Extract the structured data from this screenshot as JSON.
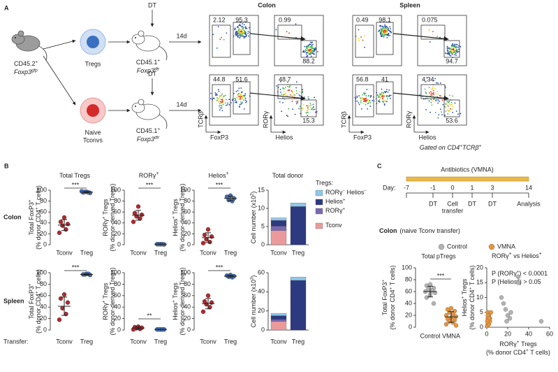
{
  "panel_a": {
    "label": "A",
    "donor_mouse": {
      "strain": [
        "CD45.2",
        "+"
      ],
      "genotype": [
        "Foxp3",
        "gfp"
      ]
    },
    "populations": [
      {
        "lines": [
          "Tregs"
        ]
      },
      {
        "lines": [
          "Naive",
          "Tconvs"
        ]
      }
    ],
    "treatment": "DT",
    "recipient": {
      "strain": [
        "CD45.1",
        "+"
      ],
      "genotype": [
        "Foxp3",
        "dtr"
      ]
    },
    "interval": "14d",
    "tissues": [
      {
        "name": "Colon",
        "rows": [
          {
            "foxp3_gates": [
              2.12,
              95.3
            ],
            "rorg_gates": [
              0.99,
              88.2
            ]
          },
          {
            "foxp3_gates": [
              44.8,
              51.6
            ],
            "rorg_gates": [
              48.7,
              15.3
            ]
          }
        ]
      },
      {
        "name": "Spleen",
        "rows": [
          {
            "foxp3_gates": [
              0.49,
              98.1
            ],
            "rorg_gates": [
              0.075,
              94.7
            ]
          },
          {
            "foxp3_gates": [
              56.8,
              41
            ],
            "rorg_gates": [
              4.34,
              53.6
            ]
          }
        ]
      }
    ],
    "axes": {
      "tcrb": "TCRβ",
      "foxp3": "FoxP3",
      "rorg": "RORγ",
      "helios": "Helios"
    },
    "gating_note": [
      "Gated on CD4",
      "+",
      "TCRβ",
      "+"
    ]
  },
  "panel_b": {
    "label": "B",
    "column_titles": [
      [
        "Total Tregs"
      ],
      [
        "RORγ",
        "+"
      ],
      [
        "Helios",
        "+"
      ],
      [
        "Total donor"
      ]
    ],
    "categories": [
      "Tconv",
      "Treg"
    ],
    "category_colors": [
      "#b3282d",
      "#3d6db5"
    ],
    "transfer_label": "Transfer:",
    "legend": {
      "title": "Tregs:",
      "series": [
        {
          "name": [
            "RORγ",
            "−",
            " Helios",
            "−"
          ],
          "color": "#8fc8ea"
        },
        {
          "name": [
            "Helios",
            "+"
          ],
          "color": "#2d3a80"
        },
        {
          "name": [
            "RORγ",
            "+"
          ],
          "color": "#7a68b3"
        },
        {
          "name": [
            "Tconv"
          ],
          "color": "#eb9a9b"
        }
      ]
    },
    "rows": [
      {
        "name": "Colon",
        "dot_plots": [
          {
            "ylabel": [
              [
                "Total FoxP3",
                "+"
              ],
              [
                "(% donor CD4",
                "+",
                " T cells)"
              ]
            ],
            "ylim": [
              0,
              100
            ],
            "yticks": [
              0,
              20,
              40,
              60,
              80,
              100
            ],
            "significance": "***",
            "groups": [
              {
                "values": [
                  50,
                  42,
                  38,
                  35,
                  28,
                  22
                ],
                "mean": 36,
                "sd": 10
              },
              {
                "values": [
                  97,
                  96,
                  95,
                  97,
                  96,
                  98
                ],
                "mean": 96.5,
                "sd": 1
              }
            ]
          },
          {
            "ylabel": [
              [
                "RORγ",
                "+",
                " Tregs"
              ],
              [
                "(% donor-derived Tregs)"
              ]
            ],
            "ylim": [
              0,
              100
            ],
            "yticks": [
              0,
              20,
              40,
              60,
              80,
              100
            ],
            "significance": "***",
            "groups": [
              {
                "values": [
                  70,
                  58,
                  55,
                  52,
                  48,
                  42
                ],
                "mean": 54,
                "sd": 9
              },
              {
                "values": [
                  1,
                  1,
                  0.5,
                  1,
                  1
                ],
                "mean": 1,
                "sd": 0.3
              }
            ]
          },
          {
            "ylabel": [
              [
                "Helios",
                "+",
                " Tregs"
              ],
              [
                "(% donor-derived Tregs)"
              ]
            ],
            "ylim": [
              0,
              100
            ],
            "yticks": [
              0,
              20,
              40,
              60,
              80,
              100
            ],
            "significance": "***",
            "groups": [
              {
                "values": [
                  28,
                  18,
                  15,
                  10,
                  5,
                  3
                ],
                "mean": 13,
                "sd": 9
              },
              {
                "values": [
                  90,
                  88,
                  85,
                  82,
                  80
                ],
                "mean": 85,
                "sd": 4
              }
            ]
          }
        ],
        "donor": {
          "ylabel": [
            "Cell number (x10",
            "2",
            ")"
          ],
          "ylim": [
            0,
            15
          ],
          "yticks": [
            0,
            5,
            10,
            15
          ],
          "values": [
            [
              0.7,
              1.0
            ],
            [
              1.6,
              10.5
            ],
            [
              1.2,
              0
            ],
            [
              3.9,
              0
            ]
          ]
        }
      },
      {
        "name": "Spleen",
        "dot_plots": [
          {
            "ylabel": [
              [
                "Total FoxP3",
                "+"
              ],
              [
                "(% donor CD4",
                "+",
                " T cells)"
              ]
            ],
            "ylim": [
              0,
              100
            ],
            "yticks": [
              0,
              20,
              40,
              60,
              80,
              100
            ],
            "significance": "***",
            "groups": [
              {
                "values": [
                  62,
                  55,
                  48,
                  38,
                  28,
                  18
                ],
                "mean": 41.5,
                "sd": 16
              },
              {
                "values": [
                  98,
                  97,
                  96,
                  97,
                  98
                ],
                "mean": 97,
                "sd": 1
              }
            ]
          },
          {
            "ylabel": [
              [
                "RORγ",
                "+",
                " Tregs"
              ],
              [
                "(% donor-derived Tregs)"
              ]
            ],
            "ylim": [
              0,
              100
            ],
            "yticks": [
              0,
              20,
              40,
              60,
              80,
              100
            ],
            "significance": "**",
            "groups": [
              {
                "values": [
                  6,
                  5,
                  4,
                  3,
                  2,
                  1
                ],
                "mean": 3.5,
                "sd": 1.9
              },
              {
                "values": [
                  1,
                  1,
                  1,
                  1,
                  1
                ],
                "mean": 1,
                "sd": 0.2
              }
            ]
          },
          {
            "ylabel": [
              [
                "Helios",
                "+",
                " Tregs"
              ],
              [
                "(% donor-derived Tregs)"
              ]
            ],
            "ylim": [
              0,
              100
            ],
            "yticks": [
              0,
              20,
              40,
              60,
              80,
              100
            ],
            "significance": "***",
            "groups": [
              {
                "values": [
                  60,
                  50,
                  48,
                  45,
                  40,
                  32
                ],
                "mean": 46,
                "sd": 9
              },
              {
                "values": [
                  96,
                  95,
                  94,
                  93,
                  92
                ],
                "mean": 94,
                "sd": 1.5
              }
            ]
          }
        ],
        "donor": {
          "ylabel": [
            "Cell number (x10",
            "3",
            ")"
          ],
          "ylim": [
            0,
            60
          ],
          "yticks": [
            0,
            20,
            40,
            60
          ],
          "values": [
            [
              2.5,
              3.5
            ],
            [
              4,
              52
            ],
            [
              2,
              0
            ],
            [
              9,
              0
            ]
          ]
        }
      }
    ]
  },
  "panel_c": {
    "label": "C",
    "timeline": {
      "treatment": "Antibiotics (VMNA)",
      "day_label": "Day:",
      "days": [
        {
          "day": -7
        },
        {
          "day": -1,
          "event": [
            "DT"
          ]
        },
        {
          "day": 0,
          "event": [
            "Cell",
            "transfer"
          ]
        },
        {
          "day": 1,
          "event": [
            "DT"
          ]
        },
        {
          "day": 3,
          "event": [
            "DT"
          ]
        },
        {
          "day": 14,
          "event": [
            "Analysis"
          ]
        }
      ]
    },
    "subtitle": {
      "tissue": "Colon",
      "detail": "(naive Tconv transfer)"
    },
    "groups": [
      {
        "name": "Control",
        "color": "#b3b3b3"
      },
      {
        "name": "VMNA",
        "color": "#e8953a"
      }
    ],
    "ptregs": {
      "title": "Total pTregs",
      "ylabel": [
        [
          "Total FoxP3",
          "+"
        ],
        [
          "(% donor CD4",
          "+",
          " T cells)"
        ]
      ],
      "ylim": [
        0,
        100
      ],
      "yticks": [
        0,
        20,
        40,
        60,
        80,
        100
      ],
      "significance": "***",
      "values": [
        [
          72,
          70,
          66,
          64,
          62,
          60,
          58,
          55,
          50,
          40
        ],
        [
          32,
          30,
          27,
          25,
          22,
          20,
          18,
          16,
          14,
          12,
          10,
          8,
          5,
          3
        ]
      ],
      "means": [
        60,
        17.3
      ],
      "sds": [
        9,
        9
      ]
    },
    "correlation": {
      "title": [
        "RORγ",
        "+",
        " vs Helios",
        "+"
      ],
      "xlabel": [
        [
          "RORγ",
          "+",
          " Tregs"
        ],
        [
          "(% donor CD4",
          "+",
          " T cells)"
        ]
      ],
      "ylabel": [
        [
          "Helios",
          "+",
          " Tregs"
        ],
        [
          "(% donor CD4",
          "+",
          " T cells)"
        ]
      ],
      "xlim": [
        0,
        60
      ],
      "xticks": [
        0,
        20,
        40,
        60
      ],
      "ylim": [
        0,
        20
      ],
      "yticks": [
        0,
        5,
        10,
        15,
        20
      ],
      "stats": [
        [
          "P (RORγ",
          "+",
          ") < 0.0001"
        ],
        [
          "P (Helios",
          "+",
          ") > 0.05"
        ]
      ],
      "series": [
        {
          "x": [
            14,
            16,
            18,
            20,
            22,
            30,
            30,
            19,
            52,
            23
          ],
          "y": [
            10,
            8,
            6,
            4,
            3,
            15,
            17,
            2,
            2,
            5
          ]
        },
        {
          "x": [
            1,
            2,
            1,
            3,
            2,
            1,
            0.5,
            2,
            3,
            1,
            2,
            0.5,
            4
          ],
          "y": [
            5,
            4,
            3,
            3,
            2,
            1,
            0.5,
            1,
            2,
            4,
            3,
            2,
            5
          ]
        }
      ]
    }
  }
}
